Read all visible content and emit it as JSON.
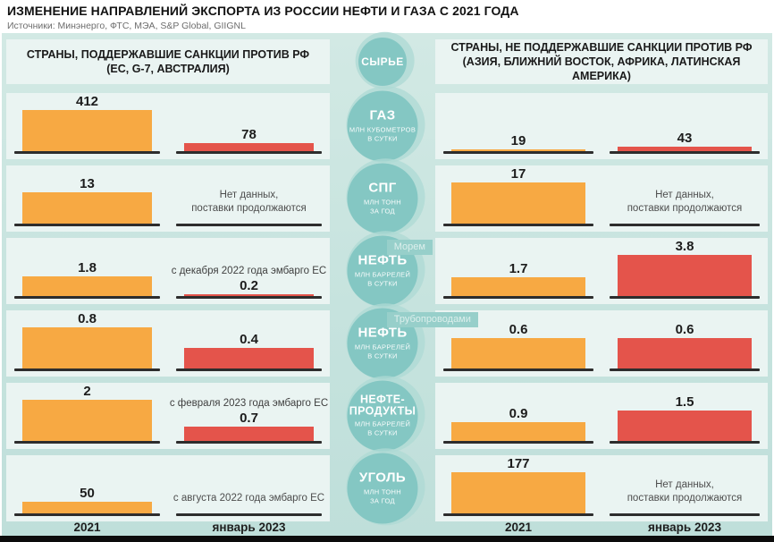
{
  "title": "ИЗМЕНЕНИЕ НАПРАВЛЕНИЙ ЭКСПОРТА ИЗ РОССИИ НЕФТИ И ГАЗА С 2021 ГОДА",
  "sources": "Источники: Минэнерго, ФТС, МЭА, S&P Global, GIIGNL",
  "headers": {
    "center": "СЫРЬЕ",
    "left_line1": "СТРАНЫ, ПОДДЕРЖАВШИЕ САНКЦИИ ПРОТИВ РФ",
    "left_line2": "(ЕС, G-7, АВСТРАЛИЯ)",
    "right_line1": "СТРАНЫ, НЕ ПОДДЕРЖАВШИЕ САНКЦИИ ПРОТИВ РФ",
    "right_line2": "(АЗИЯ, БЛИЖНИЙ ВОСТОК, АФРИКА, ЛАТИНСКАЯ АМЕРИКА)"
  },
  "footer": {
    "labels": [
      "2021",
      "январь 2023",
      "2021",
      "январь 2023"
    ]
  },
  "colors": {
    "bar_2021": "#F7A943",
    "bar_jan2023": "#E4544B",
    "circle": "#84C7C3",
    "panel": "#EAF4F2",
    "band": "#C6E3DE",
    "tag_bg": "#97CFCA"
  },
  "chart_data": {
    "type": "bar",
    "groups": [
      "2021",
      "январь 2023"
    ],
    "column_left": "Страны, поддержавшие санкции против РФ",
    "column_right": "Страны, не поддержавшие санкции против РФ",
    "rows": [
      {
        "commodity": "ГАЗ",
        "name_lines": [
          "ГАЗ"
        ],
        "unit_lines": [
          "МЛН КУБОМЕТРОВ",
          "В СУТКИ"
        ],
        "tag": null,
        "left": [
          {
            "series": "2021",
            "label": "412",
            "value": 412
          },
          {
            "series": "январь 2023",
            "label": "78",
            "value": 78
          }
        ],
        "right": [
          {
            "series": "2021",
            "label": "19",
            "value": 19
          },
          {
            "series": "январь 2023",
            "label": "43",
            "value": 43
          }
        ]
      },
      {
        "commodity": "СПГ",
        "name_lines": [
          "СПГ"
        ],
        "unit_lines": [
          "МЛН ТОНН",
          "ЗА ГОД"
        ],
        "tag": null,
        "left": [
          {
            "series": "2021",
            "label": "13",
            "value": 13
          },
          {
            "series": "январь 2023",
            "note_lines": [
              "Нет данных,",
              "поставки продолжаются"
            ]
          }
        ],
        "right": [
          {
            "series": "2021",
            "label": "17",
            "value": 17
          },
          {
            "series": "январь 2023",
            "note_lines": [
              "Нет данных,",
              "поставки продолжаются"
            ]
          }
        ]
      },
      {
        "commodity": "НЕФТЬ",
        "name_lines": [
          "НЕФТЬ"
        ],
        "unit_lines": [
          "МЛН БАРРЕЛЕЙ",
          "В СУТКИ"
        ],
        "tag": "Морем",
        "left": [
          {
            "series": "2021",
            "label": "1.8",
            "value": 1.8
          },
          {
            "series": "январь 2023",
            "label": "0.2",
            "value": 0.2,
            "annotation": "с декабря 2022 года эмбарго ЕС"
          }
        ],
        "right": [
          {
            "series": "2021",
            "label": "1.7",
            "value": 1.7
          },
          {
            "series": "январь 2023",
            "label": "3.8",
            "value": 3.8
          }
        ]
      },
      {
        "commodity": "НЕФТЬ",
        "name_lines": [
          "НЕФТЬ"
        ],
        "unit_lines": [
          "МЛН БАРРЕЛЕЙ",
          "В СУТКИ"
        ],
        "tag": "Трубопроводами",
        "left": [
          {
            "series": "2021",
            "label": "0.8",
            "value": 0.8
          },
          {
            "series": "январь 2023",
            "label": "0.4",
            "value": 0.4
          }
        ],
        "right": [
          {
            "series": "2021",
            "label": "0.6",
            "value": 0.6
          },
          {
            "series": "январь 2023",
            "label": "0.6",
            "value": 0.6
          }
        ]
      },
      {
        "commodity": "НЕФТЕПРОДУКТЫ",
        "name_lines": [
          "НЕФТЕ-",
          "ПРОДУКТЫ"
        ],
        "unit_lines": [
          "МЛН БАРРЕЛЕЙ",
          "В СУТКИ"
        ],
        "tag": null,
        "left": [
          {
            "series": "2021",
            "label": "2",
            "value": 2
          },
          {
            "series": "январь 2023",
            "label": "0.7",
            "value": 0.7,
            "annotation": "с февраля 2023 года эмбарго ЕС"
          }
        ],
        "right": [
          {
            "series": "2021",
            "label": "0.9",
            "value": 0.9
          },
          {
            "series": "январь 2023",
            "label": "1.5",
            "value": 1.5
          }
        ]
      },
      {
        "commodity": "УГОЛЬ",
        "name_lines": [
          "УГОЛЬ"
        ],
        "unit_lines": [
          "МЛН ТОНН",
          "ЗА ГОД"
        ],
        "tag": null,
        "left": [
          {
            "series": "2021",
            "label": "50",
            "value": 50
          },
          {
            "series": "январь 2023",
            "note_lines": [
              "с августа 2022 года эмбарго ЕС"
            ]
          }
        ],
        "right": [
          {
            "series": "2021",
            "label": "177",
            "value": 177
          },
          {
            "series": "январь 2023",
            "note_lines": [
              "Нет данных,",
              "поставки продолжаются"
            ]
          }
        ]
      }
    ]
  }
}
